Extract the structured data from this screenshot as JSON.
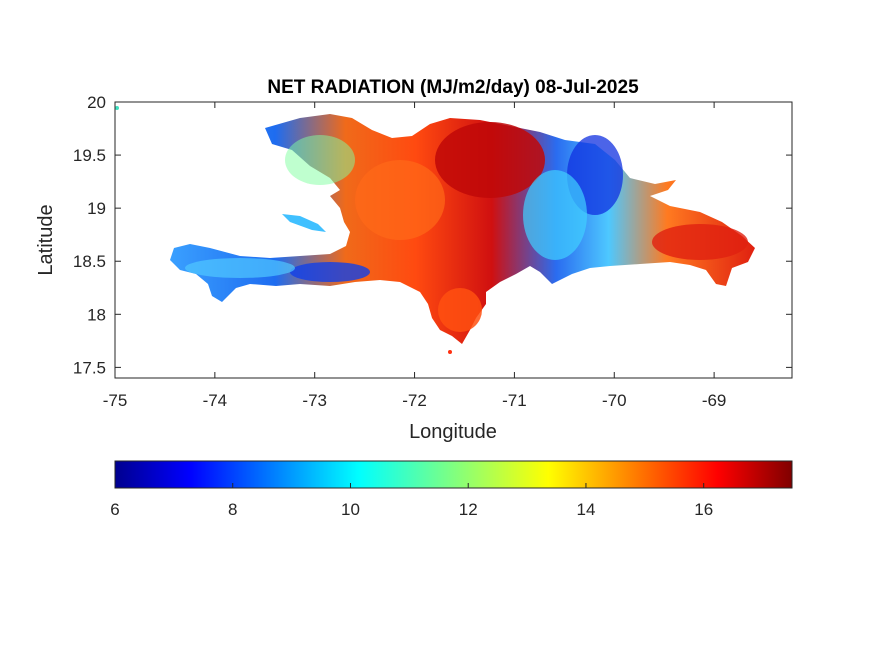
{
  "chart_data": {
    "type": "heatmap",
    "title": "NET RADIATION (MJ/m2/day) 08-Jul-2025",
    "xlabel": "Longitude",
    "ylabel": "Latitude",
    "xlim": [
      -75,
      -68.22
    ],
    "ylim": [
      17.4,
      20
    ],
    "x_ticks": [
      -75,
      -74,
      -73,
      -72,
      -71,
      -70,
      -69
    ],
    "x_tick_labels": [
      "-75",
      "-74",
      "-73",
      "-72",
      "-71",
      "-70",
      "-69"
    ],
    "y_ticks": [
      17.5,
      18,
      18.5,
      19,
      19.5,
      20
    ],
    "y_tick_labels": [
      "17.5",
      "18",
      "18.5",
      "19",
      "19.5",
      "20"
    ],
    "grid": false,
    "colormap": "jet",
    "colorbar": {
      "orientation": "horizontal",
      "placement": "below",
      "range": [
        6,
        17.5
      ],
      "ticks": [
        6,
        8,
        10,
        12,
        14,
        16
      ],
      "tick_labels": [
        "6",
        "8",
        "10",
        "12",
        "14",
        "16"
      ]
    },
    "regions": [
      {
        "name": "",
        "lon": -71.2,
        "lat": 19.5,
        "value": 16.5
      },
      {
        "name": "",
        "lon": -70.3,
        "lat": 19.4,
        "value": 7.5
      },
      {
        "name": "",
        "lon": -72.2,
        "lat": 19.0,
        "value": 14.5
      },
      {
        "name": "",
        "lon": -69.3,
        "lat": 18.6,
        "value": 15.5
      },
      {
        "name": "",
        "lon": -73.8,
        "lat": 18.4,
        "value": 9.0
      },
      {
        "name": "",
        "lon": -72.9,
        "lat": 18.35,
        "value": 7.8
      },
      {
        "name": "",
        "lon": -71.5,
        "lat": 18.0,
        "value": 15.0
      },
      {
        "name": "",
        "lon": -70.8,
        "lat": 18.8,
        "value": 11.0
      }
    ]
  }
}
